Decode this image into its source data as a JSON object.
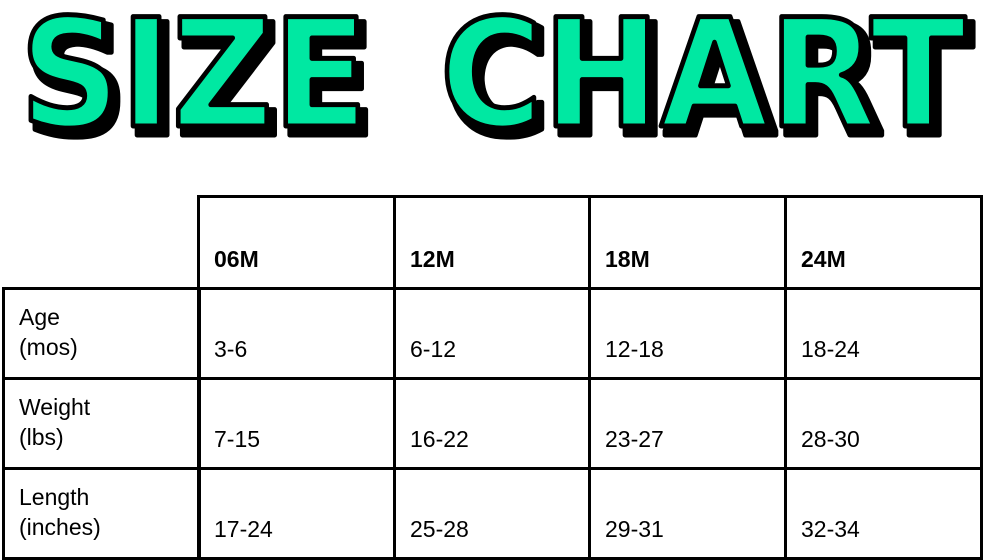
{
  "title": {
    "word1": "SIZE",
    "word2": "CHART",
    "fill_color": "#00E8A2",
    "outline_color": "#000000"
  },
  "table": {
    "columns": [
      "06M",
      "12M",
      "18M",
      "24M"
    ],
    "rows": [
      {
        "label": [
          "Age",
          "(mos)"
        ],
        "values": [
          "3-6",
          "6-12",
          "12-18",
          "18-24"
        ]
      },
      {
        "label": [
          "Weight",
          "(lbs)"
        ],
        "values": [
          "7-15",
          "16-22",
          "23-27",
          "28-30"
        ]
      },
      {
        "label": [
          "Length",
          "(inches)"
        ],
        "values": [
          "17-24",
          "25-28",
          "29-31",
          "32-34"
        ]
      }
    ]
  }
}
